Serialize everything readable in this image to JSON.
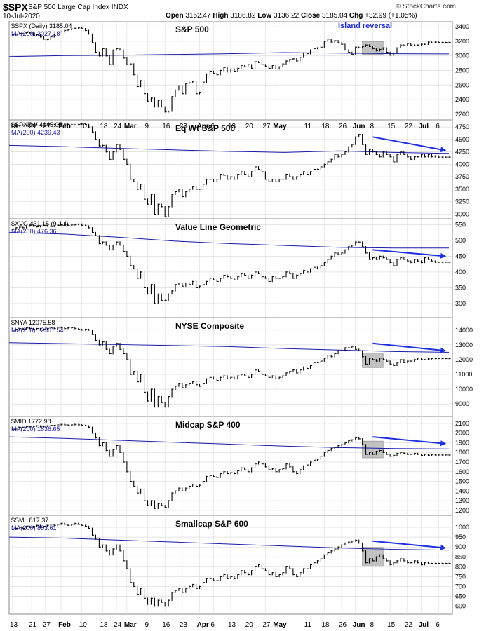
{
  "header": {
    "symbol": "$SPX",
    "name": "S&P 500 Large Cap Index INDX",
    "date": "10-Jul-2020",
    "open_label": "Open",
    "open": "3152.47",
    "high_label": "High",
    "high": "3186.82",
    "low_label": "Low",
    "low": "3136.22",
    "close_label": "Close",
    "close": "3185.04",
    "chg_label": "Chg",
    "chg": "+32.99 (+1.05%)",
    "watermark": "© StockCharts.com"
  },
  "colors": {
    "price": "#000000",
    "ma": "#1a1aa8",
    "arrow": "#1e2fe0",
    "highlight": "#b8b8b8",
    "grid": "#dcdcdc"
  },
  "chart_data": {
    "type": "line",
    "x_axis": {
      "labels": [
        "13",
        "21",
        "27",
        "Feb",
        "10",
        "18",
        "24",
        "Mar",
        "9",
        "16",
        "23",
        "Apr",
        "6",
        "13",
        "20",
        "27",
        "May",
        "11",
        "18",
        "26",
        "Jun",
        "8",
        "15",
        "22",
        "Jul",
        "6",
        "13",
        "21",
        "27",
        "Feb",
        "10",
        "18",
        "24",
        "Mar",
        "9",
        "16",
        "23",
        "Apr",
        "6",
        "13",
        "20",
        "27",
        "May",
        "11",
        "18",
        "26",
        "Jun",
        "8",
        "15",
        "22",
        "Jul",
        "6"
      ],
      "label_positions": [
        0.0,
        5.5,
        9.5,
        14.0,
        20.0,
        26.0,
        30.0,
        33.0,
        39.0,
        44.0,
        49.0,
        54.0,
        58.0,
        63.0,
        68.0,
        73.0,
        76.0,
        85.0,
        90.0,
        95.0,
        99.0,
        104.0,
        109.0,
        114.0,
        118.0,
        123.0,
        0.0,
        5.5,
        9.5,
        14.0,
        20.0,
        26.0,
        30.0,
        33.0,
        39.0,
        44.0,
        49.0,
        54.0,
        58.0,
        63.0,
        68.0,
        73.0,
        76.0,
        85.0,
        90.0,
        95.0,
        99.0,
        104.0,
        109.0,
        114.0,
        118.0,
        123.0
      ],
      "bold_labels": [
        "Feb",
        "Mar",
        "Apr",
        "May",
        "Jun",
        "Jul"
      ],
      "range": [
        -1,
        127
      ]
    },
    "panels": [
      {
        "title": "S&P 500",
        "legend_price": "$SPX (Daily) 3185.04",
        "legend_ma": "MA(200) 3027.18",
        "ylim": [
          2150,
          3450
        ],
        "yticks": [
          2200,
          2400,
          2600,
          2800,
          3000,
          3200,
          3400
        ],
        "ma": [
          2990,
          3005,
          3010,
          3020,
          3030,
          3045,
          3038,
          3030,
          3027
        ],
        "price": [
          3290,
          3300,
          3310,
          3305,
          3320,
          3315,
          3283,
          3290,
          3260,
          3230,
          3225,
          3260,
          3300,
          3330,
          3330,
          3350,
          3360,
          3370,
          3380,
          3385,
          3375,
          3350,
          3300,
          3180,
          3050,
          3000,
          3100,
          3000,
          2880,
          3080,
          3100,
          3080,
          2970,
          2880,
          2890,
          2740,
          2580,
          2660,
          2480,
          2380,
          2420,
          2300,
          2390,
          2300,
          2230,
          2240,
          2440,
          2530,
          2590,
          2480,
          2620,
          2630,
          2650,
          2480,
          2500,
          2640,
          2750,
          2790,
          2760,
          2740,
          2800,
          2840,
          2780,
          2820,
          2790,
          2830,
          2870,
          2850,
          2880,
          2830,
          2920,
          2910,
          2880,
          2860,
          2830,
          2870,
          2820,
          2850,
          2890,
          2930,
          2950,
          2960,
          2930,
          2980,
          3040,
          3030,
          3080,
          3100,
          3110,
          3120,
          3200,
          3230,
          3190,
          3210,
          3180,
          3160,
          3080,
          3050,
          3020,
          3120,
          3110,
          3130,
          3150,
          3130,
          3100,
          3070,
          3090,
          3110,
          3050,
          3010,
          3040,
          3110,
          3150,
          3140,
          3170,
          3150,
          3140,
          3150,
          3160,
          3160,
          3190,
          3180,
          3190,
          3185,
          3185,
          3185,
          3185
        ],
        "highlights": [
          {
            "start": 101,
            "end": 107
          }
        ],
        "annotation": "Island reversal",
        "arrow": null
      },
      {
        "title": "Eq Wt S&P 500",
        "legend_price": "$SPXEW 4145.05",
        "legend_ma": "MA(200) 4239.43",
        "ylim": [
          2950,
          4850
        ],
        "yticks": [
          3000,
          3250,
          3500,
          3750,
          4000,
          4250,
          4500,
          4750
        ],
        "ma": [
          4380,
          4355,
          4320,
          4290,
          4260,
          4240,
          4270,
          4240,
          4220
        ],
        "price": [
          4760,
          4770,
          4780,
          4790,
          4780,
          4790,
          4795,
          4785,
          4780,
          4785,
          4790,
          4790,
          4800,
          4800,
          4810,
          4805,
          4800,
          4795,
          4790,
          4800,
          4810,
          4800,
          4750,
          4650,
          4500,
          4370,
          4380,
          4250,
          4100,
          4250,
          4400,
          4300,
          4100,
          4000,
          3700,
          3650,
          3500,
          3600,
          3300,
          3200,
          3400,
          3000,
          3200,
          3150,
          2950,
          3150,
          3400,
          3450,
          3500,
          3350,
          3450,
          3500,
          3550,
          3500,
          3500,
          3600,
          3700,
          3700,
          3650,
          3700,
          3800,
          3780,
          3700,
          3750,
          3700,
          3800,
          3850,
          3800,
          3750,
          3850,
          3950,
          3900,
          3850,
          3700,
          3650,
          3700,
          3650,
          3700,
          3700,
          3800,
          3750,
          3700,
          3750,
          3800,
          3850,
          3800,
          3850,
          3900,
          3900,
          3950,
          4000,
          4050,
          4100,
          4200,
          4150,
          4200,
          4250,
          4350,
          4400,
          4550,
          4600,
          4400,
          4200,
          4300,
          4250,
          4200,
          4150,
          4250,
          4200,
          4150,
          4050,
          4200,
          4250,
          4200,
          4150,
          4100,
          4150,
          4150,
          4200,
          4150,
          4200,
          4150,
          4170,
          4145,
          4145,
          4145,
          4145
        ],
        "highlights": [],
        "annotation": "",
        "arrow": {
          "x0": 104,
          "y0": 4550,
          "x1": 125,
          "y1": 4280
        }
      },
      {
        "title": "Value Line Geometric",
        "legend_price": "$XVG 431.15 (9 Jul)",
        "legend_ma": "MA(200) 476.36",
        "ylim": [
          262,
          562
        ],
        "yticks": [
          300,
          350,
          400,
          450,
          500,
          550
        ],
        "ma": [
          525,
          520,
          510,
          498,
          490,
          484,
          478,
          476,
          476
        ],
        "price": [
          535,
          540,
          542,
          540,
          545,
          548,
          545,
          543,
          546,
          548,
          545,
          544,
          546,
          548,
          550,
          549,
          547,
          549,
          550,
          552,
          548,
          546,
          540,
          525,
          515,
          490,
          495,
          485,
          470,
          485,
          495,
          485,
          465,
          450,
          420,
          410,
          380,
          400,
          350,
          330,
          360,
          300,
          330,
          310,
          310,
          330,
          340,
          360,
          365,
          355,
          365,
          360,
          370,
          350,
          355,
          360,
          370,
          380,
          375,
          370,
          380,
          390,
          385,
          380,
          375,
          385,
          395,
          390,
          380,
          390,
          400,
          395,
          385,
          380,
          370,
          385,
          380,
          380,
          385,
          400,
          395,
          380,
          390,
          395,
          405,
          400,
          410,
          415,
          410,
          420,
          430,
          440,
          450,
          460,
          455,
          460,
          470,
          480,
          485,
          495,
          495,
          480,
          460,
          440,
          445,
          440,
          450,
          445,
          440,
          430,
          420,
          440,
          445,
          440,
          435,
          430,
          440,
          435,
          430,
          445,
          440,
          435,
          431,
          431,
          431,
          431,
          431
        ],
        "highlights": [],
        "annotation": "",
        "arrow": {
          "x0": 104,
          "y0": 470,
          "x1": 125,
          "y1": 450
        }
      },
      {
        "title": "NYSE Composite",
        "legend_price": "$NYA 12075.58",
        "legend_ma": "MA(200) 12501.54",
        "ylim": [
          8300,
          14700
        ],
        "yticks": [
          9000,
          10000,
          11000,
          12000,
          13000,
          14000
        ],
        "ma": [
          13150,
          13080,
          13020,
          12950,
          12880,
          12750,
          12650,
          12550,
          12500
        ],
        "price": [
          14000,
          14050,
          14100,
          14050,
          14150,
          14100,
          14050,
          14100,
          14000,
          14050,
          14100,
          14150,
          14100,
          14200,
          14150,
          14100,
          14150,
          14150,
          14100,
          14050,
          14000,
          14050,
          14000,
          13700,
          13300,
          13000,
          13200,
          12700,
          12400,
          12900,
          13100,
          12700,
          12400,
          12000,
          11000,
          11200,
          10500,
          11000,
          9800,
          9200,
          10000,
          8800,
          9500,
          9100,
          8800,
          9500,
          10000,
          10200,
          10400,
          10100,
          10300,
          10400,
          10500,
          10300,
          10200,
          10400,
          10700,
          10800,
          10700,
          10600,
          10800,
          10900,
          10700,
          10800,
          10700,
          10900,
          11000,
          10900,
          10800,
          11000,
          11300,
          11200,
          11000,
          10900,
          10800,
          10900,
          10700,
          10800,
          10900,
          11100,
          11200,
          11300,
          11100,
          11300,
          11500,
          11400,
          11600,
          11800,
          11800,
          11900,
          12100,
          12300,
          12200,
          12400,
          12600,
          12600,
          12800,
          12800,
          12900,
          12700,
          12600,
          12200,
          11700,
          12100,
          12000,
          11900,
          12100,
          12000,
          11900,
          11700,
          11600,
          11800,
          12000,
          11800,
          11900,
          11900,
          12000,
          12100,
          12000,
          12000,
          12050,
          12075,
          12075,
          12075,
          12075,
          12075,
          12075
        ],
        "highlights": [
          {
            "start": 101,
            "end": 107
          }
        ],
        "annotation": "",
        "arrow": {
          "x0": 104,
          "y0": 13100,
          "x1": 125,
          "y1": 12600
        }
      },
      {
        "title": "Midcap S&P 400",
        "legend_price": "$MID 1772.98",
        "legend_ma": "MA(200) 1836.65",
        "ylim": [
          1170,
          2150
        ],
        "yticks": [
          1200,
          1300,
          1400,
          1500,
          1600,
          1700,
          1800,
          1900,
          2000,
          2100
        ],
        "ma": [
          1960,
          1945,
          1925,
          1905,
          1885,
          1865,
          1850,
          1840,
          1836
        ],
        "price": [
          2040,
          2050,
          2060,
          2055,
          2070,
          2065,
          2070,
          2075,
          2065,
          2070,
          2075,
          2080,
          2080,
          2085,
          2090,
          2085,
          2080,
          2085,
          2090,
          2085,
          2080,
          2075,
          2060,
          2000,
          1950,
          1870,
          1900,
          1820,
          1760,
          1830,
          1870,
          1800,
          1700,
          1600,
          1500,
          1450,
          1380,
          1420,
          1300,
          1250,
          1300,
          1220,
          1270,
          1250,
          1230,
          1300,
          1380,
          1400,
          1430,
          1400,
          1430,
          1450,
          1470,
          1450,
          1460,
          1500,
          1550,
          1560,
          1550,
          1540,
          1580,
          1600,
          1580,
          1590,
          1580,
          1610,
          1640,
          1620,
          1600,
          1640,
          1680,
          1700,
          1680,
          1650,
          1620,
          1630,
          1600,
          1620,
          1630,
          1680,
          1650,
          1600,
          1580,
          1620,
          1660,
          1670,
          1700,
          1720,
          1730,
          1760,
          1800,
          1820,
          1840,
          1850,
          1870,
          1880,
          1900,
          1920,
          1930,
          1950,
          1940,
          1880,
          1780,
          1800,
          1780,
          1810,
          1820,
          1800,
          1780,
          1760,
          1770,
          1790,
          1800,
          1790,
          1780,
          1780,
          1790,
          1780,
          1770,
          1780,
          1770,
          1775,
          1773,
          1773,
          1773,
          1773,
          1773
        ],
        "highlights": [
          {
            "start": 101,
            "end": 107
          }
        ],
        "annotation": "",
        "arrow": {
          "x0": 104,
          "y0": 1960,
          "x1": 125,
          "y1": 1890
        }
      },
      {
        "title": "Smallcap S&P 600",
        "legend_price": "$SML 817.37",
        "legend_ma": "MA(200) 883.61",
        "ylim": [
          570,
          1050
        ],
        "yticks": [
          600,
          650,
          700,
          750,
          800,
          850,
          900,
          950,
          1000
        ],
        "ma": [
          950,
          945,
          935,
          925,
          915,
          905,
          895,
          888,
          884
        ],
        "price": [
          990,
          995,
          1000,
          995,
          1005,
          1000,
          1005,
          1010,
          1000,
          1005,
          1010,
          1015,
          1010,
          1015,
          1020,
          1015,
          1010,
          1015,
          1020,
          1015,
          1010,
          1005,
          995,
          960,
          940,
          900,
          910,
          880,
          860,
          890,
          910,
          880,
          830,
          790,
          720,
          700,
          660,
          690,
          640,
          610,
          640,
          600,
          630,
          620,
          600,
          630,
          670,
          680,
          690,
          670,
          690,
          700,
          710,
          690,
          700,
          720,
          740,
          740,
          730,
          730,
          750,
          760,
          740,
          750,
          740,
          760,
          780,
          770,
          760,
          780,
          800,
          810,
          790,
          780,
          760,
          770,
          750,
          760,
          770,
          800,
          790,
          760,
          750,
          770,
          790,
          790,
          810,
          820,
          830,
          840,
          860,
          870,
          880,
          890,
          900,
          910,
          920,
          925,
          930,
          935,
          920,
          880,
          820,
          840,
          830,
          850,
          860,
          840,
          830,
          810,
          820,
          830,
          840,
          830,
          820,
          820,
          830,
          820,
          810,
          820,
          815,
          817,
          817,
          817,
          817,
          817,
          817
        ],
        "highlights": [
          {
            "start": 101,
            "end": 107
          }
        ],
        "annotation": "",
        "arrow": {
          "x0": 104,
          "y0": 930,
          "x1": 125,
          "y1": 895
        }
      }
    ]
  }
}
